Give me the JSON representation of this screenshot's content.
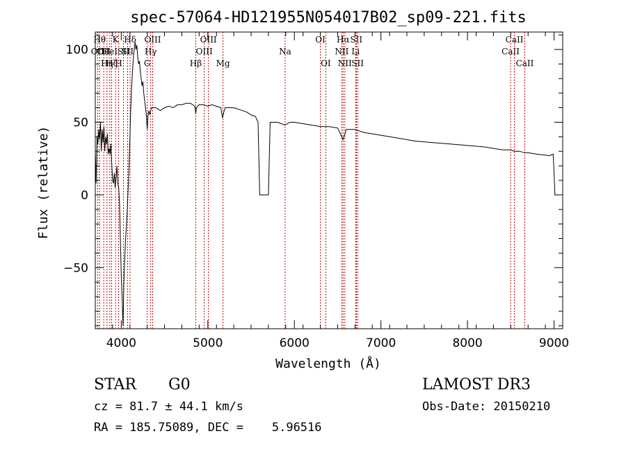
{
  "chart_data": {
    "type": "line",
    "title": "spec-57064-HD121955N054017B02_sp09-221.fits",
    "xlabel": "Wavelength (Å)",
    "ylabel": "Flux (relative)",
    "xlim": [
      3700,
      9100
    ],
    "ylim": [
      -92,
      112
    ],
    "x_ticks": [
      4000,
      5000,
      6000,
      7000,
      8000,
      9000
    ],
    "y_ticks": [
      -50,
      0,
      50,
      100
    ],
    "grid": false,
    "series": [
      {
        "points": [
          [
            3700,
            30
          ],
          [
            3710,
            8
          ],
          [
            3720,
            40
          ],
          [
            3730,
            35
          ],
          [
            3740,
            45
          ],
          [
            3750,
            38
          ],
          [
            3760,
            50
          ],
          [
            3770,
            30
          ],
          [
            3780,
            45
          ],
          [
            3790,
            36
          ],
          [
            3800,
            47
          ],
          [
            3810,
            30
          ],
          [
            3820,
            40
          ],
          [
            3830,
            35
          ],
          [
            3840,
            42
          ],
          [
            3850,
            28
          ],
          [
            3860,
            32
          ],
          [
            3870,
            28
          ],
          [
            3880,
            35
          ],
          [
            3890,
            22
          ],
          [
            3900,
            10
          ],
          [
            3910,
            8
          ],
          [
            3920,
            15
          ],
          [
            3930,
            5
          ],
          [
            3940,
            12
          ],
          [
            3950,
            20
          ],
          [
            3960,
            8
          ],
          [
            3970,
            5
          ],
          [
            3980,
            -5
          ],
          [
            3990,
            -30
          ],
          [
            4000,
            -55
          ],
          [
            4010,
            -70
          ],
          [
            4020,
            -90
          ],
          [
            4030,
            -60
          ],
          [
            4040,
            -45
          ],
          [
            4050,
            -30
          ],
          [
            4060,
            -20
          ],
          [
            4070,
            -10
          ],
          [
            4080,
            5
          ],
          [
            4090,
            20
          ],
          [
            4100,
            40
          ],
          [
            4110,
            60
          ],
          [
            4120,
            75
          ],
          [
            4130,
            85
          ],
          [
            4140,
            95
          ],
          [
            4150,
            100
          ],
          [
            4160,
            105
          ],
          [
            4170,
            100
          ],
          [
            4180,
            103
          ],
          [
            4190,
            95
          ],
          [
            4200,
            90
          ],
          [
            4210,
            92
          ],
          [
            4220,
            85
          ],
          [
            4230,
            80
          ],
          [
            4240,
            75
          ],
          [
            4250,
            78
          ],
          [
            4260,
            70
          ],
          [
            4270,
            65
          ],
          [
            4280,
            60
          ],
          [
            4290,
            55
          ],
          [
            4300,
            45
          ],
          [
            4310,
            55
          ],
          [
            4320,
            58
          ],
          [
            4330,
            55
          ],
          [
            4340,
            58
          ],
          [
            4350,
            60
          ],
          [
            4400,
            60
          ],
          [
            4450,
            58
          ],
          [
            4500,
            60
          ],
          [
            4550,
            61
          ],
          [
            4600,
            60
          ],
          [
            4650,
            62
          ],
          [
            4700,
            62
          ],
          [
            4750,
            63
          ],
          [
            4800,
            63
          ],
          [
            4850,
            61
          ],
          [
            4860,
            56
          ],
          [
            4870,
            60
          ],
          [
            4900,
            62
          ],
          [
            4950,
            62
          ],
          [
            5000,
            61
          ],
          [
            5050,
            62
          ],
          [
            5100,
            61
          ],
          [
            5150,
            60
          ],
          [
            5170,
            53
          ],
          [
            5185,
            57
          ],
          [
            5200,
            60
          ],
          [
            5300,
            60
          ],
          [
            5400,
            58
          ],
          [
            5450,
            57
          ],
          [
            5500,
            55
          ],
          [
            5550,
            54
          ],
          [
            5580,
            50
          ],
          [
            5600,
            0
          ],
          [
            5700,
            0
          ],
          [
            5720,
            50
          ],
          [
            5800,
            50
          ],
          [
            5850,
            49
          ],
          [
            5893,
            48
          ],
          [
            5950,
            50
          ],
          [
            6000,
            50
          ],
          [
            6100,
            49
          ],
          [
            6200,
            48
          ],
          [
            6300,
            47
          ],
          [
            6400,
            47
          ],
          [
            6500,
            46
          ],
          [
            6563,
            38
          ],
          [
            6600,
            45
          ],
          [
            6700,
            45
          ],
          [
            6800,
            43
          ],
          [
            7000,
            41
          ],
          [
            7200,
            39
          ],
          [
            7400,
            37
          ],
          [
            7600,
            36
          ],
          [
            7800,
            35
          ],
          [
            8000,
            34
          ],
          [
            8200,
            33
          ],
          [
            8400,
            31
          ],
          [
            8500,
            31
          ],
          [
            8542,
            30
          ],
          [
            8600,
            30
          ],
          [
            8662,
            29
          ],
          [
            8700,
            29
          ],
          [
            8800,
            28
          ],
          [
            8950,
            27
          ],
          [
            8990,
            28
          ],
          [
            9000,
            15
          ],
          [
            9010,
            0
          ]
        ]
      }
    ],
    "line_markers": [
      {
        "wavelength": 3727,
        "label": "OII",
        "row": 2
      },
      {
        "wavelength": 3750,
        "label": "Hθ",
        "row": 1
      },
      {
        "wavelength": 3798,
        "label": "OII",
        "row": 2
      },
      {
        "wavelength": 3835,
        "label": "Hη",
        "row": 3
      },
      {
        "wavelength": 3868,
        "label": "HeI",
        "row": 2
      },
      {
        "wavelength": 3889,
        "label": "Hζ",
        "row": 3
      },
      {
        "wavelength": 3934,
        "label": "K",
        "row": 1
      },
      {
        "wavelength": 3970,
        "label": "H",
        "row": 3
      },
      {
        "wavelength": 4026,
        "label": "SII",
        "row": 2
      },
      {
        "wavelength": 4072,
        "label": "SII",
        "row": 2
      },
      {
        "wavelength": 4102,
        "label": "Hδ",
        "row": 1
      },
      {
        "wavelength": 4300,
        "label": "G",
        "row": 3
      },
      {
        "wavelength": 4340,
        "label": "Hγ",
        "row": 2
      },
      {
        "wavelength": 4363,
        "label": "OIII",
        "row": 1
      },
      {
        "wavelength": 4861,
        "label": "Hβ",
        "row": 3
      },
      {
        "wavelength": 4959,
        "label": "OIII",
        "row": 2
      },
      {
        "wavelength": 5007,
        "label": "OIII",
        "row": 1
      },
      {
        "wavelength": 5175,
        "label": "Mg",
        "row": 3
      },
      {
        "wavelength": 5893,
        "label": "Na",
        "row": 2
      },
      {
        "wavelength": 6300,
        "label": "OI",
        "row": 1
      },
      {
        "wavelength": 6363,
        "label": "OI",
        "row": 3
      },
      {
        "wavelength": 6548,
        "label": "NII",
        "row": 2
      },
      {
        "wavelength": 6563,
        "label": "Hα",
        "row": 1
      },
      {
        "wavelength": 6583,
        "label": "NII",
        "row": 3
      },
      {
        "wavelength": 6716,
        "label": "SII",
        "row": 1
      },
      {
        "wavelength": 6708,
        "label": "Li",
        "row": 2
      },
      {
        "wavelength": 6731,
        "label": "SII",
        "row": 3
      },
      {
        "wavelength": 8498,
        "label": "CaII",
        "row": 2
      },
      {
        "wavelength": 8542,
        "label": "CaII",
        "row": 1
      },
      {
        "wavelength": 8662,
        "label": "CaII",
        "row": 3
      }
    ]
  },
  "info": {
    "object_class": "STAR",
    "subclass": "G0",
    "survey": "LAMOST DR3",
    "velocity": "cz = 81.7 ± 44.1 km/s",
    "obs_date": "Obs-Date: 20150210",
    "coords": "RA = 185.75089, DEC =    5.96516"
  }
}
